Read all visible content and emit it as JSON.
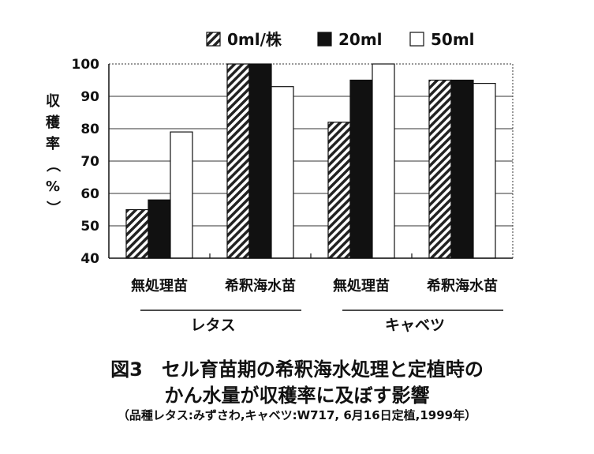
{
  "chart_data": {
    "type": "bar",
    "groups": [
      {
        "label": "レタス",
        "categories": [
          "無処理苗",
          "希釈海水苗"
        ]
      },
      {
        "label": "キャベツ",
        "categories": [
          "無処理苗",
          "希釈海水苗"
        ]
      }
    ],
    "categories": [
      "無処理苗",
      "希釈海水苗",
      "無処理苗",
      "希釈海水苗"
    ],
    "series": [
      {
        "name": "0ml/株",
        "values": [
          55,
          100,
          82,
          95
        ],
        "pattern": "hatched"
      },
      {
        "name": "20ml",
        "values": [
          58,
          100,
          95,
          95
        ],
        "color": "#111111"
      },
      {
        "name": "50ml",
        "values": [
          79,
          93,
          100,
          94
        ],
        "color": "#ffffff"
      }
    ],
    "ylabel": "収穫率（%）",
    "ylabel_chars": [
      "収",
      "穫",
      "率",
      "（",
      "%",
      "）"
    ],
    "ylim": [
      40,
      100
    ],
    "yticks": [
      40,
      50,
      60,
      70,
      80,
      90,
      100
    ],
    "grid": true,
    "legend_position": "top"
  },
  "caption": {
    "line1": "図3　セル育苗期の希釈海水処理と定植時の",
    "line2": "かん水量が収穫率に及ぼす影響",
    "note": "（品種レタス:みずさわ,キャベツ:W717, 6月16日定植,1999年）"
  }
}
